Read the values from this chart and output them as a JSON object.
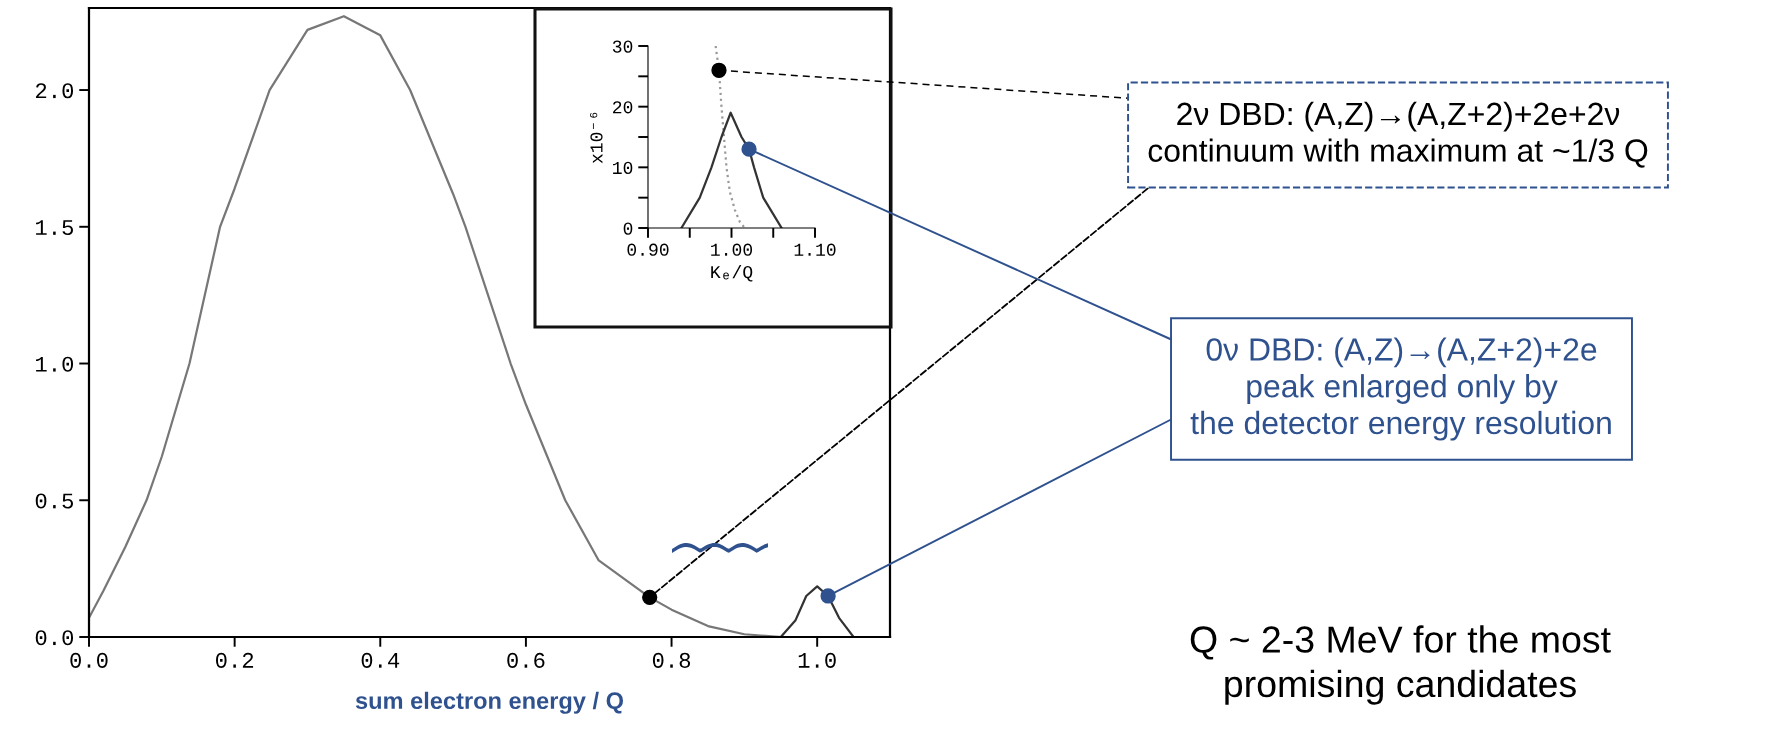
{
  "chart_data": [
    {
      "type": "line",
      "xlabel": "sum electron energy / Q",
      "xlim": [
        0,
        1.1
      ],
      "ylim": [
        0,
        2.3
      ],
      "grid": false,
      "xticks": [
        {
          "value": 0,
          "label": "0.0"
        },
        {
          "value": 0.2,
          "label": "0.2"
        },
        {
          "value": 0.4,
          "label": "0.4"
        },
        {
          "value": 0.6,
          "label": "0.6"
        },
        {
          "value": 0.8,
          "label": "0.8"
        },
        {
          "value": 1.0,
          "label": "1.0"
        }
      ],
      "yticks": [
        {
          "value": 0,
          "label": "0.0"
        },
        {
          "value": 0.5,
          "label": "0.5"
        },
        {
          "value": 1.0,
          "label": "1.0"
        },
        {
          "value": 1.5,
          "label": "1.5"
        },
        {
          "value": 2.0,
          "label": "2.0"
        }
      ],
      "series": [
        {
          "color": "#777777",
          "x": [
            0,
            0.02,
            0.05,
            0.079,
            0.1,
            0.138,
            0.18,
            0.2,
            0.248,
            0.3,
            0.35,
            0.4,
            0.441,
            0.5,
            0.517,
            0.579,
            0.6,
            0.654,
            0.7,
            0.77,
            0.8,
            0.85,
            0.9,
            0.95
          ],
          "values": [
            0.07,
            0.17,
            0.33,
            0.5,
            0.66,
            1.0,
            1.5,
            1.64,
            2.0,
            2.22,
            2.27,
            2.2,
            2.0,
            1.62,
            1.5,
            1.0,
            0.85,
            0.5,
            0.28,
            0.145,
            0.1,
            0.04,
            0.01,
            0.0
          ]
        },
        {
          "color": "#333333",
          "x": [
            0.95,
            0.97,
            0.985,
            1.0,
            1.015,
            1.03,
            1.05
          ],
          "values": [
            0,
            0.06,
            0.15,
            0.185,
            0.15,
            0.07,
            0
          ]
        }
      ],
      "annotations": [
        {
          "text": "2ν DBD: (A,Z)→(A,Z+2)+2e+2ν\ncontinuum with maximum at ~1/3 Q",
          "x": 0.77,
          "y": 0.145
        },
        {
          "text": "0ν DBD: (A,Z)→(A,Z+2)+2e\npeak enlarged only by\nthe detector energy resolution",
          "x": 1.015,
          "y": 0.15
        },
        "Q ~ 2-3 MeV for the most\npromising candidates"
      ]
    },
    {
      "type": "line",
      "xlabel": "Kₑ/Q",
      "ylabel": "x10⁻⁶",
      "xlim": [
        0.9,
        1.1
      ],
      "ylim": [
        0,
        30
      ],
      "grid": false,
      "xticks": [
        {
          "value": 0.9,
          "label": "0.90"
        },
        {
          "value": 0.95,
          "label": null
        },
        {
          "value": 1.0,
          "label": "1.00"
        },
        {
          "value": 1.05,
          "label": null
        },
        {
          "value": 1.1,
          "label": "1.10"
        }
      ],
      "yticks": [
        0,
        {
          "value": 5,
          "label": null
        },
        10,
        {
          "value": 15,
          "label": null
        },
        20,
        {
          "value": 25,
          "label": null
        },
        30
      ],
      "series": [
        {
          "color": "#999999",
          "line_style": "dotted",
          "x": [
            0.981,
            0.985,
            0.988,
            0.991,
            0.994,
            0.998,
            1.004,
            1.01,
            1.016
          ],
          "values": [
            30,
            26,
            20,
            15,
            10,
            6,
            3,
            1,
            0
          ]
        },
        {
          "color": "#333333",
          "x": [
            0.94,
            0.962,
            0.976,
            0.988,
            0.999,
            1.012,
            1.021,
            1.027,
            1.038,
            1.06
          ],
          "values": [
            0,
            5,
            10,
            15,
            19,
            15,
            13,
            10,
            5,
            0
          ]
        }
      ]
    }
  ]
}
